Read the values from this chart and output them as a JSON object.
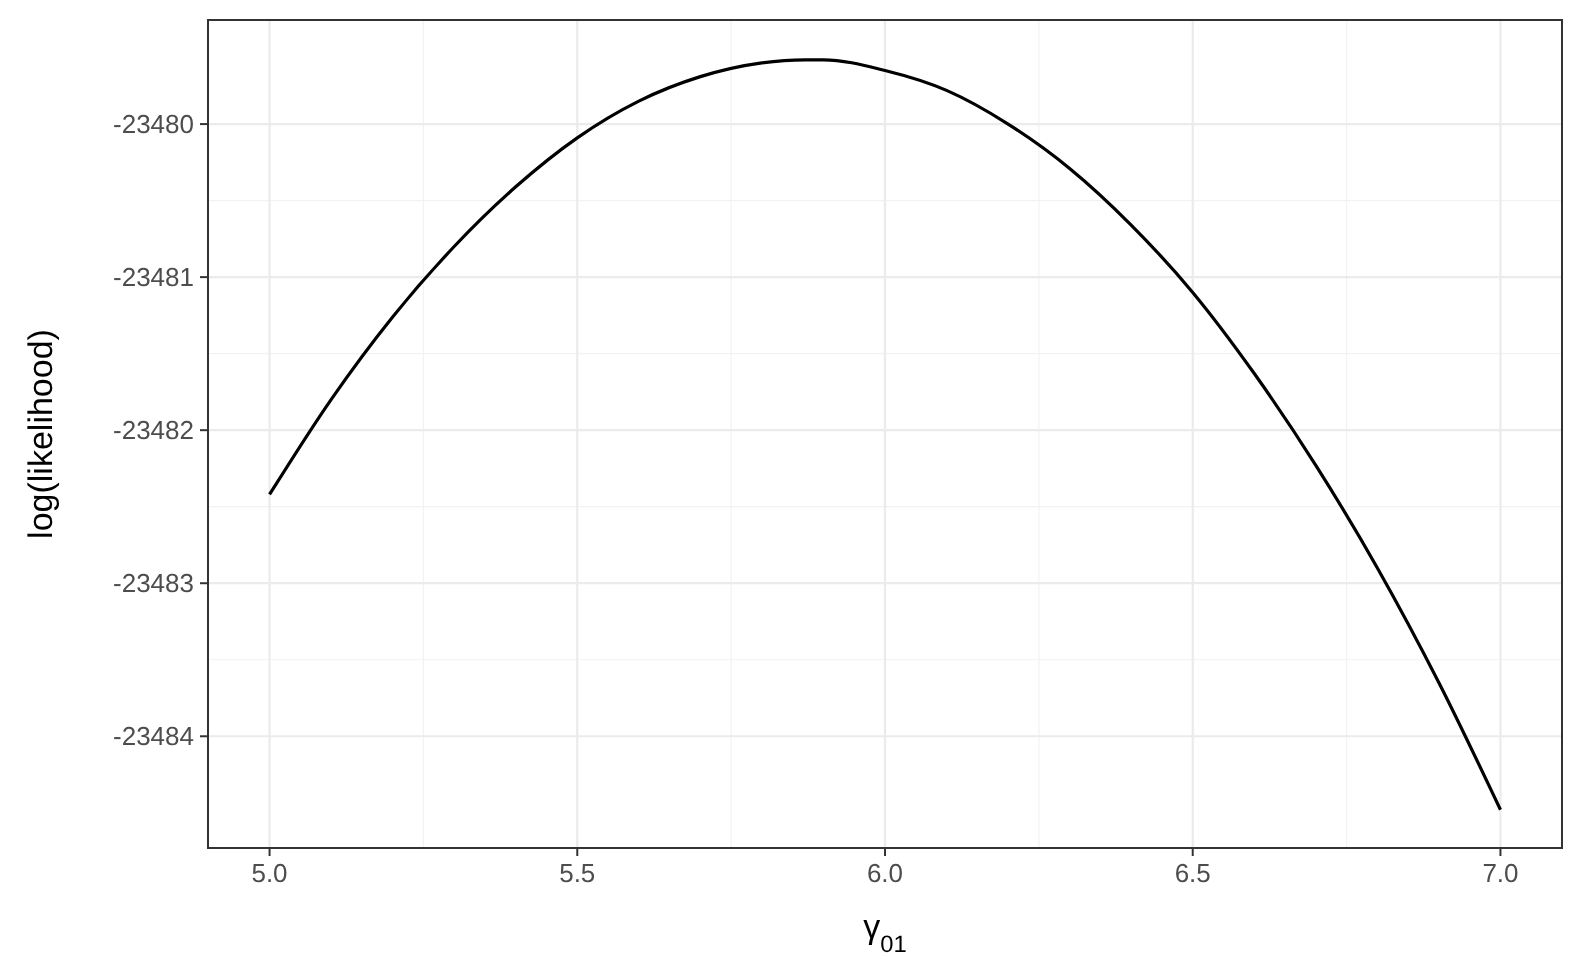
{
  "chart_data": {
    "type": "line",
    "xlabel": "γ$_{01}$",
    "ylabel": "log(likelihood)",
    "x": [
      5.0,
      5.1,
      5.2,
      5.3,
      5.4,
      5.5,
      5.6,
      5.7,
      5.8,
      5.87,
      5.9,
      6.0,
      6.1,
      6.2,
      6.3,
      6.4,
      6.5,
      6.6,
      6.7,
      6.8,
      6.9,
      7.0
    ],
    "series": [
      {
        "color": "#000000",
        "values": [
          -23482.42,
          -23481.8,
          -23481.26,
          -23480.8,
          -23480.41,
          -23480.09,
          -23479.85,
          -23479.69,
          -23479.6,
          -23479.58,
          -23479.58,
          -23479.65,
          -23479.78,
          -23480.0,
          -23480.29,
          -23480.66,
          -23481.1,
          -23481.63,
          -23482.23,
          -23482.9,
          -23483.65,
          -23484.48
        ]
      }
    ],
    "xlim": [
      4.9,
      7.1
    ],
    "ylim": [
      -23484.73,
      -23479.32
    ],
    "xticks": [
      {
        "value": 5,
        "label": "5.0"
      },
      {
        "value": 5.5,
        "label": "5.5"
      },
      {
        "value": 6,
        "label": "6.0"
      },
      {
        "value": 6.5,
        "label": "6.5"
      },
      {
        "value": 7,
        "label": "7.0"
      }
    ],
    "yticks": [
      -23484,
      -23483,
      -23482,
      -23481,
      -23480
    ],
    "grid": true,
    "marker": "none",
    "line_style": "solid"
  }
}
